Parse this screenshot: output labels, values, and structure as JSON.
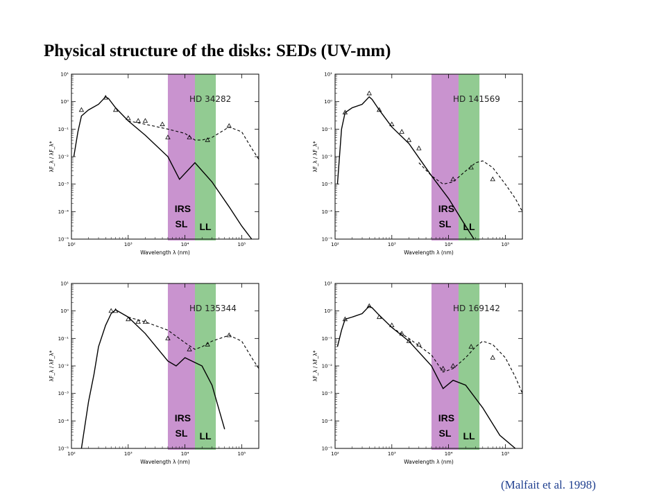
{
  "title": "Physical structure of the disks:  SEDs (UV-mm)",
  "citation": "(Malfait et al. 1998)",
  "colors": {
    "irs_sl_band": "#c993cf",
    "ll_band": "#92cb92",
    "curves": "#000000"
  },
  "chart_data": [
    {
      "type": "line",
      "title": "HD 34282",
      "xlabel": "Wavelength  λ  (nm)",
      "ylabel": "λF_λ / λF_λ*",
      "x_scale": "log",
      "y_scale": "log",
      "xlim": [
        100,
        200000
      ],
      "ylim": [
        1e-05,
        10
      ],
      "x_ticks": [
        "10²",
        "10³",
        "10⁴",
        "10⁵"
      ],
      "y_ticks": [
        "10⁻⁵",
        "10⁻⁴",
        "10⁻³",
        "10⁻²",
        "10⁻¹",
        "10⁰",
        "10¹"
      ],
      "bands": [
        {
          "label": "IRS SL",
          "label_lines": [
            "IRS",
            "SL"
          ],
          "xmin": 5000,
          "xmax": 15000
        },
        {
          "label": "LL",
          "label_lines": [
            "LL"
          ],
          "xmin": 15000,
          "xmax": 35000
        }
      ],
      "series": [
        {
          "style": "solid",
          "x": [
            110,
            130,
            150,
            200,
            300,
            400,
            450,
            600,
            1000,
            2000,
            5000,
            8000,
            15000,
            30000,
            60000,
            100000,
            150000
          ],
          "y": [
            0.01,
            0.08,
            0.3,
            0.5,
            0.8,
            1.5,
            1.3,
            0.6,
            0.2,
            0.06,
            0.01,
            0.0015,
            0.006,
            0.0012,
            0.00015,
            3e-05,
            1e-05
          ]
        },
        {
          "style": "dashed",
          "x": [
            1000,
            2000,
            5000,
            10000,
            15000,
            20000,
            30000,
            60000,
            100000,
            150000,
            200000
          ],
          "y": [
            0.2,
            0.15,
            0.1,
            0.07,
            0.04,
            0.04,
            0.05,
            0.12,
            0.08,
            0.02,
            0.008
          ]
        },
        {
          "style": "points",
          "x": [
            150,
            400,
            600,
            1000,
            1500,
            2000,
            4000,
            5000,
            12000,
            25000,
            60000
          ],
          "y": [
            0.5,
            1.4,
            0.5,
            0.25,
            0.2,
            0.2,
            0.15,
            0.05,
            0.05,
            0.04,
            0.13
          ]
        }
      ]
    },
    {
      "type": "line",
      "title": "HD 141569",
      "xlabel": "Wavelength  λ  (nm)",
      "ylabel": "λF_λ / λF_λ*",
      "x_scale": "log",
      "y_scale": "log",
      "xlim": [
        100,
        200000
      ],
      "ylim": [
        1e-05,
        10
      ],
      "x_ticks": [
        "10²",
        "10³",
        "10⁴",
        "10⁵"
      ],
      "y_ticks": [
        "10⁻⁵",
        "10⁻⁴",
        "10⁻³",
        "10⁻²",
        "10⁻¹",
        "10⁰",
        "10¹"
      ],
      "bands": [
        {
          "label": "IRS SL",
          "label_lines": [
            "IRS",
            "SL"
          ],
          "xmin": 5000,
          "xmax": 15000
        },
        {
          "label": "LL",
          "label_lines": [
            "LL"
          ],
          "xmin": 15000,
          "xmax": 35000
        }
      ],
      "series": [
        {
          "style": "solid",
          "x": [
            110,
            130,
            150,
            200,
            300,
            400,
            450,
            600,
            1000,
            2000,
            5000,
            10000,
            20000,
            30000
          ],
          "y": [
            0.001,
            0.1,
            0.4,
            0.6,
            0.8,
            1.5,
            1.2,
            0.5,
            0.12,
            0.03,
            0.002,
            0.0003,
            3e-05,
            8e-06
          ]
        },
        {
          "style": "dashed",
          "x": [
            3000,
            5000,
            8000,
            12000,
            20000,
            30000,
            40000,
            60000,
            100000,
            150000,
            200000
          ],
          "y": [
            0.006,
            0.002,
            0.001,
            0.0012,
            0.003,
            0.006,
            0.007,
            0.004,
            0.001,
            0.0003,
            0.0001
          ]
        },
        {
          "style": "points",
          "x": [
            150,
            400,
            600,
            1000,
            1500,
            2000,
            3000,
            12000,
            25000,
            60000
          ],
          "y": [
            0.4,
            2.0,
            0.5,
            0.15,
            0.08,
            0.04,
            0.02,
            0.0015,
            0.004,
            0.0015
          ]
        }
      ]
    },
    {
      "type": "line",
      "title": "HD 135344",
      "xlabel": "Wavelength  λ  (nm)",
      "ylabel": "λF_λ / λF_λ*",
      "x_scale": "log",
      "y_scale": "log",
      "xlim": [
        100,
        200000
      ],
      "ylim": [
        1e-05,
        10
      ],
      "x_ticks": [
        "10²",
        "10³",
        "10⁴",
        "10⁵"
      ],
      "y_ticks": [
        "10⁻⁵",
        "10⁻⁴",
        "10⁻³",
        "10⁻²",
        "10⁻¹",
        "10⁰",
        "10¹"
      ],
      "bands": [
        {
          "label": "IRS SL",
          "label_lines": [
            "IRS",
            "SL"
          ],
          "xmin": 5000,
          "xmax": 15000
        },
        {
          "label": "LL",
          "label_lines": [
            "LL"
          ],
          "xmin": 15000,
          "xmax": 35000
        }
      ],
      "series": [
        {
          "style": "solid",
          "x": [
            150,
            200,
            250,
            300,
            400,
            500,
            600,
            1000,
            2000,
            5000,
            7000,
            10000,
            20000,
            30000,
            50000
          ],
          "y": [
            1e-05,
            0.0005,
            0.005,
            0.05,
            0.3,
            0.8,
            1.1,
            0.6,
            0.15,
            0.015,
            0.01,
            0.02,
            0.01,
            0.002,
            5e-05
          ]
        },
        {
          "style": "dashed",
          "x": [
            1000,
            2000,
            5000,
            10000,
            15000,
            20000,
            30000,
            60000,
            100000,
            150000,
            200000
          ],
          "y": [
            0.6,
            0.4,
            0.2,
            0.07,
            0.04,
            0.05,
            0.08,
            0.13,
            0.08,
            0.02,
            0.008
          ]
        },
        {
          "style": "points",
          "x": [
            500,
            600,
            1000,
            1500,
            2000,
            5000,
            12000,
            25000,
            60000
          ],
          "y": [
            1.0,
            1.0,
            0.5,
            0.4,
            0.4,
            0.1,
            0.04,
            0.06,
            0.13
          ]
        }
      ]
    },
    {
      "type": "line",
      "title": "HD 169142",
      "xlabel": "Wavelength  λ  (nm)",
      "ylabel": "λF_λ / λF_λ*",
      "x_scale": "log",
      "y_scale": "log",
      "xlim": [
        100,
        200000
      ],
      "ylim": [
        1e-05,
        10
      ],
      "x_ticks": [
        "10²",
        "10³",
        "10⁴",
        "10⁵"
      ],
      "y_ticks": [
        "10⁻⁵",
        "10⁻⁴",
        "10⁻³",
        "10⁻²",
        "10⁻¹",
        "10⁰",
        "10¹"
      ],
      "bands": [
        {
          "label": "IRS SL",
          "label_lines": [
            "IRS",
            "SL"
          ],
          "xmin": 5000,
          "xmax": 15000
        },
        {
          "label": "LL",
          "label_lines": [
            "LL"
          ],
          "xmin": 15000,
          "xmax": 35000
        }
      ],
      "series": [
        {
          "style": "solid",
          "x": [
            110,
            130,
            150,
            200,
            300,
            400,
            450,
            600,
            1000,
            2000,
            5000,
            8000,
            12000,
            20000,
            40000,
            80000,
            150000
          ],
          "y": [
            0.05,
            0.2,
            0.5,
            0.6,
            0.8,
            1.5,
            1.3,
            0.7,
            0.25,
            0.08,
            0.01,
            0.0015,
            0.003,
            0.002,
            0.0003,
            3e-05,
            1e-05
          ]
        },
        {
          "style": "dashed",
          "x": [
            1000,
            2000,
            5000,
            8000,
            12000,
            20000,
            30000,
            40000,
            60000,
            100000,
            150000,
            200000
          ],
          "y": [
            0.25,
            0.1,
            0.025,
            0.006,
            0.008,
            0.02,
            0.05,
            0.08,
            0.06,
            0.02,
            0.004,
            0.001
          ]
        },
        {
          "style": "points",
          "x": [
            150,
            400,
            600,
            1000,
            1500,
            2000,
            3000,
            8000,
            12000,
            25000,
            60000
          ],
          "y": [
            0.5,
            1.5,
            0.6,
            0.3,
            0.15,
            0.08,
            0.06,
            0.008,
            0.01,
            0.05,
            0.02
          ]
        }
      ]
    }
  ]
}
